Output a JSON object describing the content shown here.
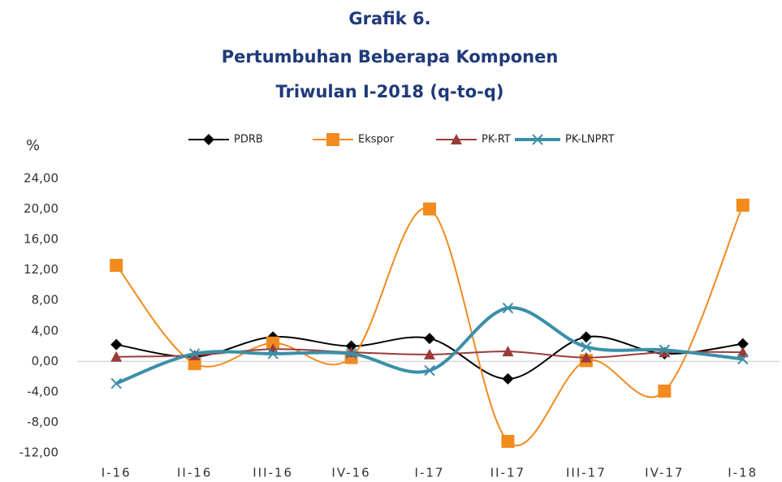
{
  "chart_data": {
    "type": "line",
    "title": [
      "Grafik 6.",
      "Pertumbuhan Beberapa Komponen",
      "Triwulan I-2018 (q-to-q)"
    ],
    "y_label": "%",
    "categories": [
      "I-16",
      "II-16",
      "III-16",
      "IV-16",
      "I-17",
      "II-17",
      "III-17",
      "IV-17",
      "I-18"
    ],
    "series": [
      {
        "name": "PDRB",
        "color": "#000000",
        "marker": "diamond",
        "values": [
          2.2,
          0.6,
          3.2,
          2.0,
          3.0,
          -2.3,
          3.2,
          1.0,
          2.3
        ]
      },
      {
        "name": "Ekspor",
        "color": "#f28a1e",
        "marker": "square",
        "values": [
          12.6,
          -0.3,
          2.4,
          0.5,
          20.0,
          -10.5,
          0.1,
          -3.9,
          20.5
        ]
      },
      {
        "name": "PK-RT",
        "color": "#9c3a3a",
        "marker": "triangle",
        "values": [
          0.6,
          0.8,
          1.6,
          1.2,
          0.9,
          1.3,
          0.5,
          1.2,
          1.2
        ]
      },
      {
        "name": "PK-LNPRT",
        "color": "#3b8fa8",
        "marker": "x",
        "values": [
          -2.9,
          1.0,
          1.0,
          1.0,
          -1.2,
          7.0,
          1.9,
          1.5,
          0.3
        ]
      }
    ],
    "ylim": [
      -12,
      24
    ],
    "yticks": [
      {
        "value": -12,
        "label": "-12,00"
      },
      {
        "value": -8,
        "label": "-8,00"
      },
      {
        "value": -4,
        "label": "-4,00"
      },
      {
        "value": 0,
        "label": "0,00"
      },
      {
        "value": 4,
        "label": "4,00"
      },
      {
        "value": 8,
        "label": "8,00"
      },
      {
        "value": 12,
        "label": "12,00"
      },
      {
        "value": 16,
        "label": "16,00"
      },
      {
        "value": 20,
        "label": "20,00"
      },
      {
        "value": 24,
        "label": "24,00"
      }
    ],
    "legend": "top",
    "smooth": true,
    "grid": false
  }
}
